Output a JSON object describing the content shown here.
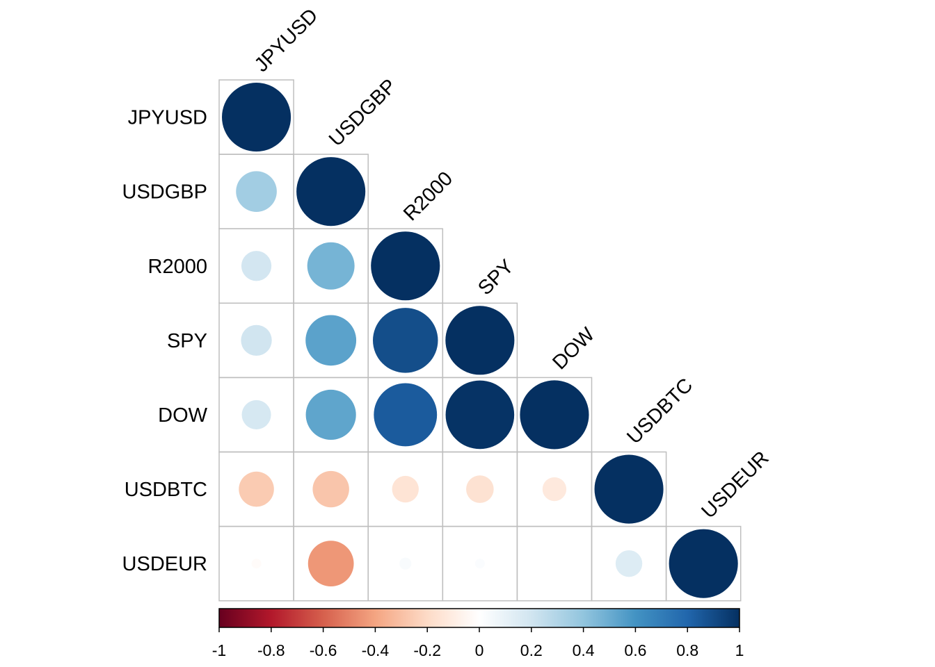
{
  "chart_data": {
    "type": "heatmap",
    "style": "corrplot-circle-lower-triangle",
    "variables": [
      "JPYUSD",
      "USDGBP",
      "R2000",
      "SPY",
      "DOW",
      "USDBTC",
      "USDEUR"
    ],
    "matrix": [
      [
        1.0,
        null,
        null,
        null,
        null,
        null,
        null
      ],
      [
        0.35,
        1.0,
        null,
        null,
        null,
        null,
        null
      ],
      [
        0.19,
        0.47,
        1.0,
        null,
        null,
        null,
        null
      ],
      [
        0.2,
        0.54,
        0.89,
        1.0,
        null,
        null,
        null
      ],
      [
        0.18,
        0.53,
        0.84,
        0.99,
        1.0,
        null,
        null
      ],
      [
        -0.26,
        -0.28,
        -0.15,
        -0.16,
        -0.12,
        1.0,
        null
      ],
      [
        -0.02,
        -0.44,
        0.03,
        0.02,
        0.0,
        0.15,
        1.0
      ]
    ],
    "colorbar": {
      "range": [
        -1,
        1
      ],
      "tick_values": [
        -1,
        -0.8,
        -0.6,
        -0.4,
        -0.2,
        0,
        0.2,
        0.4,
        0.6,
        0.8,
        1
      ],
      "tick_labels": [
        "-1",
        "-0.8",
        "-0.6",
        "-0.4",
        "-0.2",
        "0",
        "0.2",
        "0.4",
        "0.6",
        "0.8",
        "1"
      ],
      "orientation": "horizontal",
      "placement": "bottom",
      "palette": [
        "#67001F",
        "#B2182B",
        "#D6604D",
        "#F4A582",
        "#FDDBC7",
        "#FFFFFF",
        "#D1E5F0",
        "#92C5DE",
        "#4393C3",
        "#2166AC",
        "#053061"
      ]
    },
    "grid": true,
    "grid_color": "#BEBEBE",
    "title": ""
  }
}
